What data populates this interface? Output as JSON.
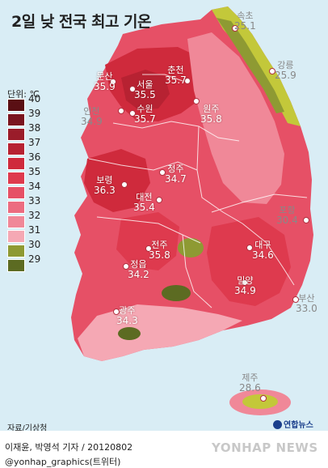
{
  "title": "2일 낮 전국 최고 기온",
  "legend": {
    "unit_label": "단위: ℃",
    "steps": [
      {
        "value": "40",
        "color": "#5a0f14"
      },
      {
        "value": "39",
        "color": "#7a1520"
      },
      {
        "value": "38",
        "color": "#9a1c2a"
      },
      {
        "value": "37",
        "color": "#b72232"
      },
      {
        "value": "36",
        "color": "#cf2a3c"
      },
      {
        "value": "35",
        "color": "#de3a4e"
      },
      {
        "value": "34",
        "color": "#e65066"
      },
      {
        "value": "33",
        "color": "#ec6c80"
      },
      {
        "value": "32",
        "color": "#f08898"
      },
      {
        "value": "31",
        "color": "#f5a8b4"
      },
      {
        "value": "30",
        "color": "#8e9a33"
      },
      {
        "value": "29",
        "color": "#5c6b22"
      }
    ]
  },
  "cities": [
    {
      "name": "속초",
      "temp": "25.1",
      "tone": "dark"
    },
    {
      "name": "강릉",
      "temp": "25.9",
      "tone": "dark"
    },
    {
      "name": "문산",
      "temp": "35.9",
      "tone": "light"
    },
    {
      "name": "서울",
      "temp": "35.5",
      "tone": "light"
    },
    {
      "name": "춘천",
      "temp": "35.7",
      "tone": "light"
    },
    {
      "name": "인천",
      "temp": "34.9",
      "tone": "dark"
    },
    {
      "name": "수원",
      "temp": "35.7",
      "tone": "light"
    },
    {
      "name": "원주",
      "temp": "35.8",
      "tone": "light"
    },
    {
      "name": "보령",
      "temp": "36.3",
      "tone": "light"
    },
    {
      "name": "청주",
      "temp": "34.7",
      "tone": "light"
    },
    {
      "name": "대전",
      "temp": "35.4",
      "tone": "light"
    },
    {
      "name": "포항",
      "temp": "30.4",
      "tone": "dark"
    },
    {
      "name": "전주",
      "temp": "35.8",
      "tone": "light"
    },
    {
      "name": "대구",
      "temp": "34.6",
      "tone": "light"
    },
    {
      "name": "정읍",
      "temp": "34.2",
      "tone": "light"
    },
    {
      "name": "밀양",
      "temp": "34.9",
      "tone": "light"
    },
    {
      "name": "부산",
      "temp": "33.0",
      "tone": "dark"
    },
    {
      "name": "광주",
      "temp": "34.3",
      "tone": "light"
    },
    {
      "name": "제주",
      "temp": "28.6",
      "tone": "dark"
    }
  ],
  "source": "자료/기상청",
  "badge": "연합뉴스",
  "byline": "이재윤, 박영석 기자 / 20120802",
  "handle": "@yonhap_graphics(트위터)",
  "watermark": "YONHAP NEWS"
}
